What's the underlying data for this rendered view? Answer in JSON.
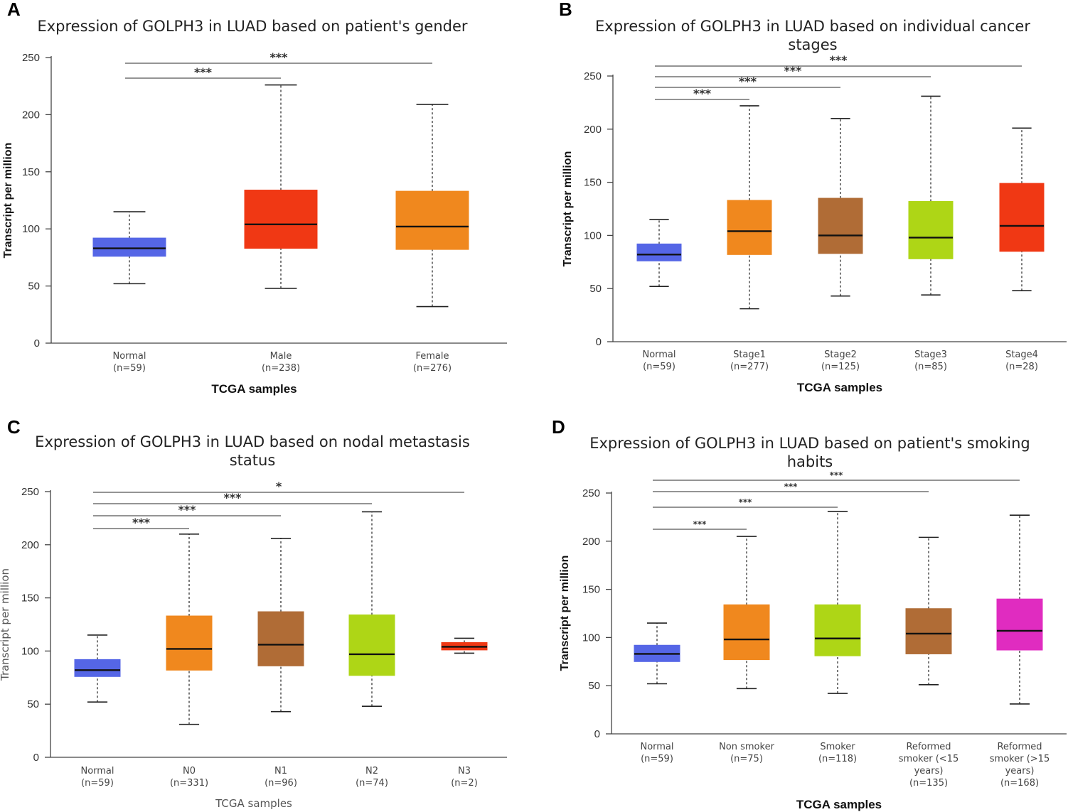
{
  "chart_data": [
    {
      "panel": "A",
      "type": "boxplot",
      "title": [
        "Expression of GOLPH3 in LUAD based on patient's gender"
      ],
      "xlabel": "TCGA samples",
      "ylabel": "Transcript per million",
      "ylim": [
        0,
        250
      ],
      "yticks": [
        0,
        50,
        100,
        150,
        200,
        250
      ],
      "categories": [
        {
          "name": "Normal",
          "n": "(n=59)",
          "color": "#5566e6",
          "min": 52,
          "q1": 76,
          "median": 83,
          "q3": 92,
          "max": 115
        },
        {
          "name": "Male",
          "n": "(n=238)",
          "color": "#f03814",
          "min": 48,
          "q1": 83,
          "median": 104,
          "q3": 134,
          "max": 226
        },
        {
          "name": "Female",
          "n": "(n=276)",
          "color": "#f0881e",
          "min": 32,
          "q1": 82,
          "median": 102,
          "q3": 133,
          "max": 209
        }
      ],
      "significance": [
        {
          "from": 0,
          "to": 1,
          "label": "***"
        },
        {
          "from": 0,
          "to": 2,
          "label": "***"
        }
      ]
    },
    {
      "panel": "B",
      "type": "boxplot",
      "title": [
        "Expression of GOLPH3 in LUAD based on individual cancer",
        "stages"
      ],
      "xlabel": "TCGA samples",
      "ylabel": "Transcript per million",
      "ylim": [
        0,
        250
      ],
      "yticks": [
        0,
        50,
        100,
        150,
        200,
        250
      ],
      "categories": [
        {
          "name": "Normal",
          "n": "(n=59)",
          "color": "#5566e6",
          "min": 52,
          "q1": 76,
          "median": 82,
          "q3": 92,
          "max": 115
        },
        {
          "name": "Stage1",
          "n": "(n=277)",
          "color": "#f0881e",
          "min": 31,
          "q1": 82,
          "median": 104,
          "q3": 133,
          "max": 222
        },
        {
          "name": "Stage2",
          "n": "(n=125)",
          "color": "#b06c36",
          "min": 43,
          "q1": 83,
          "median": 100,
          "q3": 135,
          "max": 210
        },
        {
          "name": "Stage3",
          "n": "(n=85)",
          "color": "#aed616",
          "min": 44,
          "q1": 78,
          "median": 98,
          "q3": 132,
          "max": 231
        },
        {
          "name": "Stage4",
          "n": "(n=28)",
          "color": "#f03814",
          "min": 48,
          "q1": 85,
          "median": 109,
          "q3": 149,
          "max": 201
        }
      ],
      "significance": [
        {
          "from": 0,
          "to": 1,
          "label": "***"
        },
        {
          "from": 0,
          "to": 2,
          "label": "***"
        },
        {
          "from": 0,
          "to": 3,
          "label": "***"
        },
        {
          "from": 0,
          "to": 4,
          "label": "***"
        }
      ]
    },
    {
      "panel": "C",
      "type": "boxplot",
      "title": [
        "Expression of GOLPH3 in LUAD based on nodal metastasis",
        "status"
      ],
      "xlabel": "TCGA samples",
      "ylabel": "Transcript per million",
      "ylim": [
        0,
        250
      ],
      "yticks": [
        0,
        50,
        100,
        150,
        200,
        250
      ],
      "categories": [
        {
          "name": "Normal",
          "n": "(n=59)",
          "color": "#5566e6",
          "min": 52,
          "q1": 76,
          "median": 82,
          "q3": 92,
          "max": 115
        },
        {
          "name": "N0",
          "n": "(n=331)",
          "color": "#f0881e",
          "min": 31,
          "q1": 82,
          "median": 102,
          "q3": 133,
          "max": 210
        },
        {
          "name": "N1",
          "n": "(n=96)",
          "color": "#b06c36",
          "min": 43,
          "q1": 86,
          "median": 106,
          "q3": 137,
          "max": 206
        },
        {
          "name": "N2",
          "n": "(n=74)",
          "color": "#aed616",
          "min": 48,
          "q1": 77,
          "median": 97,
          "q3": 134,
          "max": 231
        },
        {
          "name": "N3",
          "n": "(n=2)",
          "color": "#f03814",
          "min": 98,
          "q1": 101,
          "median": 104,
          "q3": 108,
          "max": 112
        }
      ],
      "significance": [
        {
          "from": 0,
          "to": 1,
          "label": "***"
        },
        {
          "from": 0,
          "to": 2,
          "label": "***"
        },
        {
          "from": 0,
          "to": 3,
          "label": "***"
        },
        {
          "from": 0,
          "to": 4,
          "label": "*"
        }
      ]
    },
    {
      "panel": "D",
      "type": "boxplot",
      "title": [
        "Expression of GOLPH3 in LUAD based on patient's smoking",
        "habits"
      ],
      "xlabel": "TCGA samples",
      "ylabel": "Transcript per million",
      "ylim": [
        0,
        250
      ],
      "yticks": [
        0,
        50,
        100,
        150,
        200,
        250
      ],
      "categories": [
        {
          "name": [
            "Normal"
          ],
          "n": "(n=59)",
          "color": "#5566e6",
          "min": 52,
          "q1": 75,
          "median": 83,
          "q3": 92,
          "max": 115
        },
        {
          "name": [
            "Non smoker"
          ],
          "n": "(n=75)",
          "color": "#f0881e",
          "min": 47,
          "q1": 77,
          "median": 98,
          "q3": 134,
          "max": 205
        },
        {
          "name": [
            "Smoker"
          ],
          "n": "(n=118)",
          "color": "#aed616",
          "min": 42,
          "q1": 81,
          "median": 99,
          "q3": 134,
          "max": 231
        },
        {
          "name": [
            "Reformed",
            "smoker (<15",
            "years)"
          ],
          "n": "(n=135)",
          "color": "#b06c36",
          "min": 51,
          "q1": 83,
          "median": 104,
          "q3": 130,
          "max": 204
        },
        {
          "name": [
            "Reformed",
            "smoker (>15",
            "years)"
          ],
          "n": "(n=168)",
          "color": "#e02cc0",
          "min": 31,
          "q1": 87,
          "median": 107,
          "q3": 140,
          "max": 227
        }
      ],
      "significance": [
        {
          "from": 0,
          "to": 1,
          "label": "***"
        },
        {
          "from": 0,
          "to": 2,
          "label": "***"
        },
        {
          "from": 0,
          "to": 3,
          "label": "***"
        },
        {
          "from": 0,
          "to": 4,
          "label": "***"
        }
      ]
    }
  ]
}
